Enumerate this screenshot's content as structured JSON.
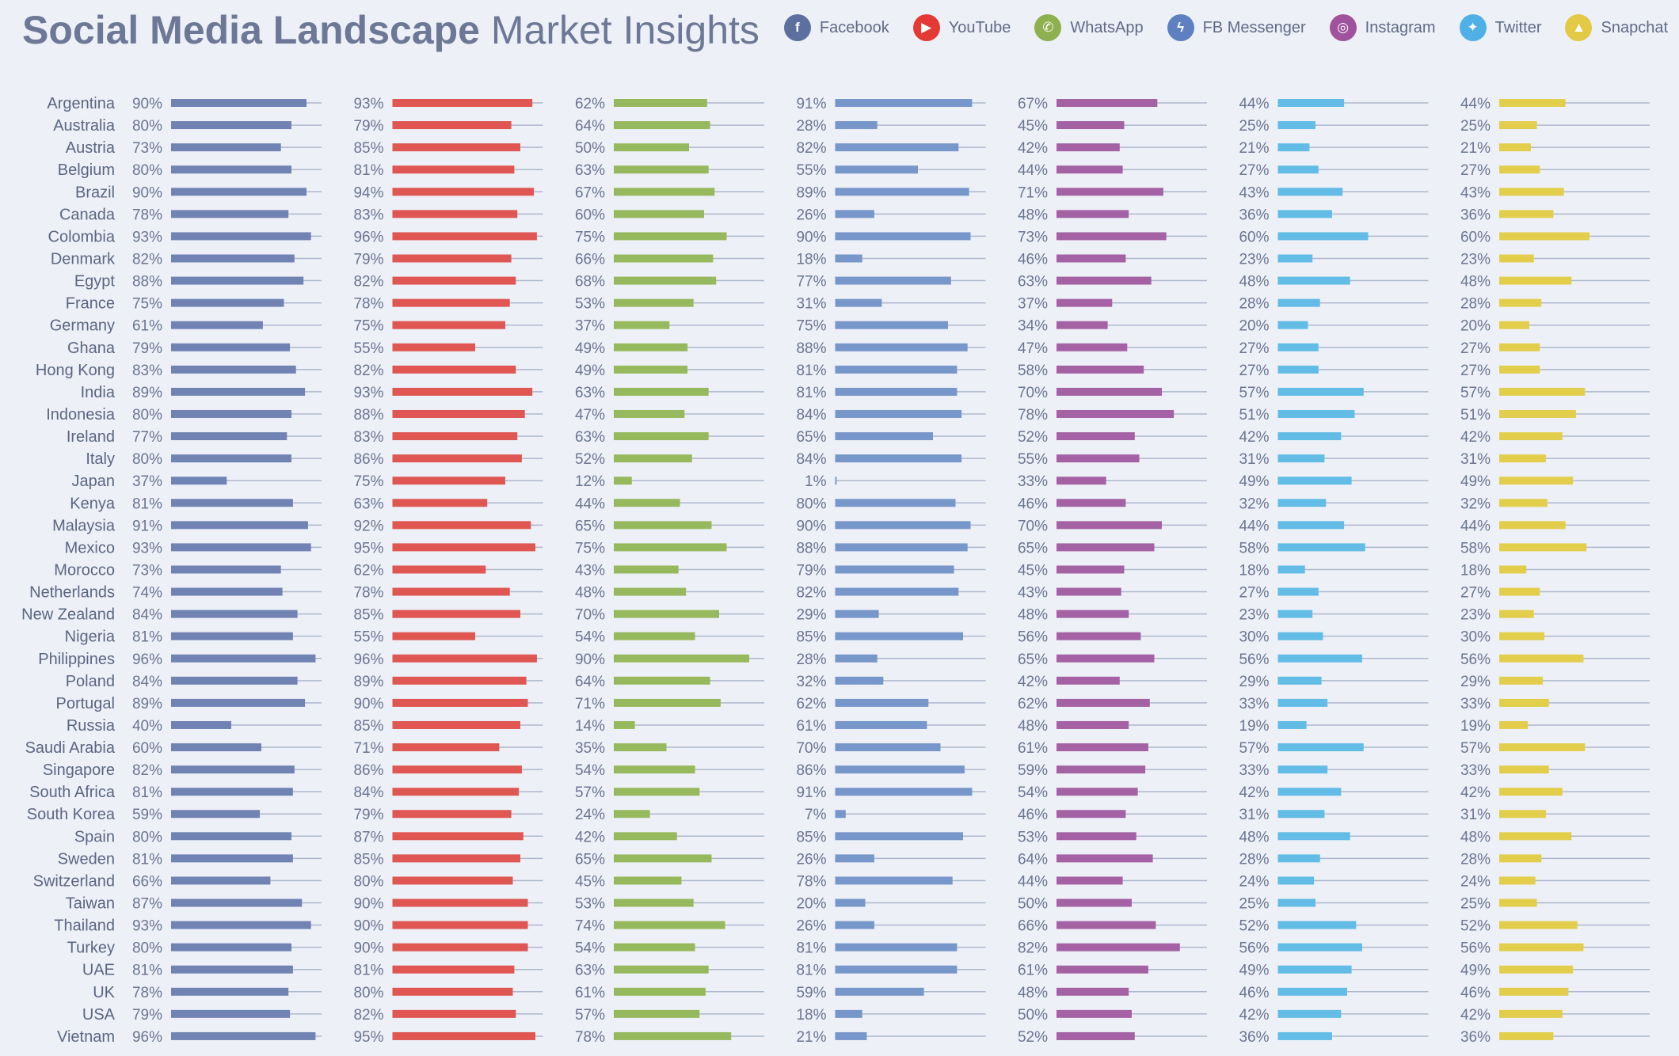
{
  "header": {
    "title_bold": "Social Media Landscape",
    "title_light": "Market Insights"
  },
  "chart_data": {
    "type": "bar",
    "value_format": "percent",
    "xlim": [
      0,
      100
    ],
    "legend_placement": "top-right",
    "categories": [
      "Argentina",
      "Australia",
      "Austria",
      "Belgium",
      "Brazil",
      "Canada",
      "Colombia",
      "Denmark",
      "Egypt",
      "France",
      "Germany",
      "Ghana",
      "Hong Kong",
      "India",
      "Indonesia",
      "Ireland",
      "Italy",
      "Japan",
      "Kenya",
      "Malaysia",
      "Mexico",
      "Morocco",
      "Netherlands",
      "New Zealand",
      "Nigeria",
      "Philippines",
      "Poland",
      "Portugal",
      "Russia",
      "Saudi Arabia",
      "Singapore",
      "South Africa",
      "South Korea",
      "Spain",
      "Sweden",
      "Switzerland",
      "Taiwan",
      "Thailand",
      "Turkey",
      "UAE",
      "UK",
      "USA",
      "Vietnam"
    ],
    "series": [
      {
        "name": "Facebook",
        "icon": "facebook-icon",
        "glyph": "f",
        "color": "#7083b3",
        "icon_color": "#5c6f9f",
        "values": [
          90,
          80,
          73,
          80,
          90,
          78,
          93,
          82,
          88,
          75,
          61,
          79,
          83,
          89,
          80,
          77,
          80,
          37,
          81,
          91,
          93,
          73,
          74,
          84,
          81,
          96,
          84,
          89,
          40,
          60,
          82,
          81,
          59,
          80,
          81,
          66,
          87,
          93,
          80,
          81,
          78,
          79,
          96
        ]
      },
      {
        "name": "YouTube",
        "icon": "youtube-icon",
        "glyph": "▶",
        "color": "#df5652",
        "icon_color": "#e53935",
        "values": [
          93,
          79,
          85,
          81,
          94,
          83,
          96,
          79,
          82,
          78,
          75,
          55,
          82,
          93,
          88,
          83,
          86,
          75,
          63,
          92,
          95,
          62,
          78,
          85,
          55,
          96,
          89,
          90,
          85,
          71,
          86,
          84,
          79,
          87,
          85,
          80,
          90,
          90,
          90,
          81,
          80,
          82,
          95
        ]
      },
      {
        "name": "WhatsApp",
        "icon": "whatsapp-icon",
        "glyph": "✆",
        "color": "#97b95d",
        "icon_color": "#8eb04f",
        "values": [
          62,
          64,
          50,
          63,
          67,
          60,
          75,
          66,
          68,
          53,
          37,
          49,
          49,
          63,
          47,
          63,
          52,
          12,
          44,
          65,
          75,
          43,
          48,
          70,
          54,
          90,
          64,
          71,
          14,
          35,
          54,
          57,
          24,
          42,
          65,
          45,
          53,
          74,
          54,
          63,
          61,
          57,
          78
        ]
      },
      {
        "name": "FB Messenger",
        "icon": "messenger-icon",
        "glyph": "ϟ",
        "color": "#7796c9",
        "icon_color": "#5f80c0",
        "values": [
          91,
          28,
          82,
          55,
          89,
          26,
          90,
          18,
          77,
          31,
          75,
          88,
          81,
          81,
          84,
          65,
          84,
          1,
          80,
          90,
          88,
          79,
          82,
          29,
          85,
          28,
          32,
          62,
          61,
          70,
          86,
          91,
          7,
          85,
          26,
          78,
          20,
          26,
          81,
          81,
          59,
          18,
          21
        ]
      },
      {
        "name": "Instagram",
        "icon": "instagram-icon",
        "glyph": "◎",
        "color": "#a462a4",
        "icon_color": "#a0529c",
        "values": [
          67,
          45,
          42,
          44,
          71,
          48,
          73,
          46,
          63,
          37,
          34,
          47,
          58,
          70,
          78,
          52,
          55,
          33,
          46,
          70,
          65,
          45,
          43,
          48,
          56,
          65,
          42,
          62,
          48,
          61,
          59,
          54,
          46,
          53,
          64,
          44,
          50,
          66,
          82,
          61,
          48,
          50,
          52
        ]
      },
      {
        "name": "Twitter",
        "icon": "twitter-icon",
        "glyph": "✦",
        "color": "#62bce5",
        "icon_color": "#4fb0e6",
        "values": [
          44,
          25,
          21,
          27,
          43,
          36,
          60,
          23,
          48,
          28,
          20,
          27,
          27,
          57,
          51,
          42,
          31,
          49,
          32,
          44,
          58,
          18,
          27,
          23,
          30,
          56,
          29,
          33,
          19,
          57,
          33,
          42,
          31,
          48,
          28,
          24,
          25,
          52,
          56,
          49,
          46,
          42,
          36
        ]
      },
      {
        "name": "Snapchat",
        "icon": "snapchat-icon",
        "glyph": "▲",
        "color": "#e3ce4c",
        "icon_color": "#e3c944",
        "values": [
          44,
          25,
          21,
          27,
          43,
          36,
          60,
          23,
          48,
          28,
          20,
          27,
          27,
          57,
          51,
          42,
          31,
          49,
          32,
          44,
          58,
          18,
          27,
          23,
          30,
          56,
          29,
          33,
          19,
          57,
          33,
          42,
          31,
          48,
          28,
          24,
          25,
          52,
          56,
          49,
          46,
          42,
          36
        ]
      }
    ]
  }
}
